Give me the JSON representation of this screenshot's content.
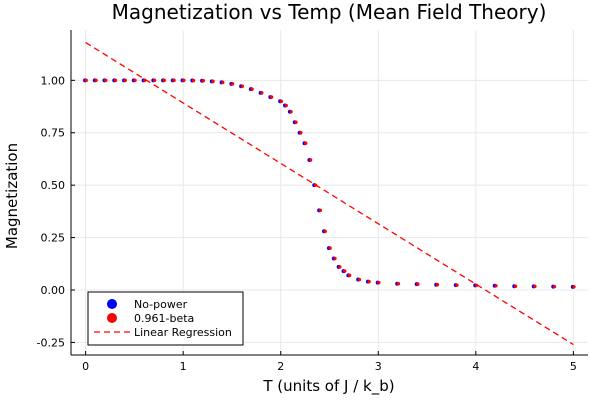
{
  "chart_data": {
    "type": "scatter",
    "title": "Magnetization vs Temp (Mean Field Theory)",
    "xlabel": "T (units of J / k_b)",
    "ylabel": "Magnetization",
    "xlim": [
      -0.15,
      5.15
    ],
    "ylim": [
      -0.31,
      1.24
    ],
    "x_ticks": [
      0,
      1,
      2,
      3,
      4,
      5
    ],
    "x_tick_labels": [
      "0",
      "1",
      "2",
      "3",
      "4",
      "5"
    ],
    "y_ticks": [
      -0.25,
      0.0,
      0.25,
      0.5,
      0.75,
      1.0
    ],
    "y_tick_labels": [
      "-0.25",
      "0.00",
      "0.25",
      "0.50",
      "0.75",
      "1.00"
    ],
    "grid": true,
    "legend_position": "bottom-left",
    "series": [
      {
        "name": "No-power",
        "marker": "circle",
        "color": "#0000ff",
        "x": [
          0.0,
          0.1,
          0.2,
          0.3,
          0.4,
          0.5,
          0.6,
          0.7,
          0.8,
          0.9,
          1.0,
          1.1,
          1.2,
          1.3,
          1.4,
          1.5,
          1.6,
          1.7,
          1.8,
          1.9,
          2.0,
          2.05,
          2.1,
          2.15,
          2.2,
          2.25,
          2.3,
          2.35,
          2.4,
          2.45,
          2.5,
          2.55,
          2.6,
          2.65,
          2.7,
          2.8,
          2.9,
          3.0,
          3.2,
          3.4,
          3.6,
          3.8,
          4.0,
          4.2,
          4.4,
          4.6,
          4.8,
          5.0
        ],
        "y": [
          1.0,
          1.0,
          1.0,
          1.0,
          1.0,
          1.0,
          1.0,
          1.0,
          1.0,
          1.0,
          1.0,
          0.999,
          0.998,
          0.995,
          0.99,
          0.983,
          0.972,
          0.958,
          0.94,
          0.92,
          0.9,
          0.88,
          0.85,
          0.8,
          0.75,
          0.7,
          0.62,
          0.5,
          0.38,
          0.28,
          0.2,
          0.15,
          0.11,
          0.09,
          0.07,
          0.05,
          0.04,
          0.035,
          0.03,
          0.028,
          0.025,
          0.023,
          0.022,
          0.02,
          0.018,
          0.017,
          0.016,
          0.015
        ]
      },
      {
        "name": "0.961-beta",
        "marker": "circle",
        "color": "#ff0000",
        "x": [
          0.0,
          0.1,
          0.2,
          0.3,
          0.4,
          0.5,
          0.6,
          0.7,
          0.8,
          0.9,
          1.0,
          1.1,
          1.2,
          1.3,
          1.4,
          1.5,
          1.6,
          1.7,
          1.8,
          1.9,
          2.0,
          2.05,
          2.1,
          2.15,
          2.2,
          2.25,
          2.3,
          2.35,
          2.4,
          2.45,
          2.5,
          2.55,
          2.6,
          2.65,
          2.7,
          2.8,
          2.9,
          3.0,
          3.2,
          3.4,
          3.6,
          3.8,
          4.0,
          4.2,
          4.4,
          4.6,
          4.8,
          5.0
        ],
        "y": [
          1.0,
          1.0,
          1.0,
          1.0,
          1.0,
          1.0,
          1.0,
          1.0,
          1.0,
          1.0,
          1.0,
          0.999,
          0.998,
          0.995,
          0.99,
          0.983,
          0.972,
          0.958,
          0.94,
          0.92,
          0.9,
          0.88,
          0.85,
          0.8,
          0.75,
          0.7,
          0.62,
          0.5,
          0.38,
          0.28,
          0.2,
          0.15,
          0.11,
          0.09,
          0.07,
          0.05,
          0.04,
          0.035,
          0.03,
          0.028,
          0.025,
          0.023,
          0.022,
          0.02,
          0.018,
          0.017,
          0.016,
          0.015
        ]
      },
      {
        "name": "Linear Regression",
        "line": "dashed",
        "color": "#ff0000",
        "x": [
          0.0,
          5.0
        ],
        "y": [
          1.18,
          -0.26
        ]
      }
    ]
  }
}
